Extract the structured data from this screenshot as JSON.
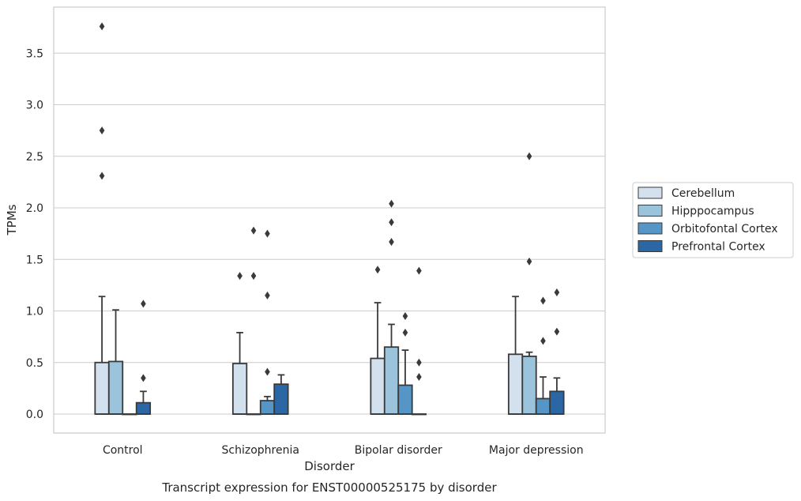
{
  "chart_data": {
    "type": "box",
    "xlabel": "Disorder",
    "ylabel": "TPMs",
    "caption": "Transcript expression for ENST00000525175 by disorder",
    "ylim": [
      -0.18,
      3.95
    ],
    "yticks": [
      "0.0",
      "0.5",
      "1.0",
      "1.5",
      "2.0",
      "2.5",
      "3.0",
      "3.5"
    ],
    "ytick_values": [
      0,
      0.5,
      1.0,
      1.5,
      2.0,
      2.5,
      3.0,
      3.5
    ],
    "grid": "horizontal",
    "legend_position": "right",
    "categories": [
      "Control",
      "Schizophrenia",
      "Bipolar disorder",
      "Major depression"
    ],
    "series": [
      {
        "name": "Cerebellum",
        "color": "#d3e1ef",
        "boxes": [
          {
            "q1": 0,
            "median": 0,
            "q3": 0.5,
            "whisker_low": 0,
            "whisker_high": 1.14,
            "outliers": [
              2.31,
              2.75,
              3.76
            ]
          },
          {
            "q1": 0,
            "median": 0,
            "q3": 0.49,
            "whisker_low": 0,
            "whisker_high": 0.79,
            "outliers": [
              1.34
            ]
          },
          {
            "q1": 0,
            "median": 0,
            "q3": 0.54,
            "whisker_low": 0,
            "whisker_high": 1.08,
            "outliers": [
              1.4
            ]
          },
          {
            "q1": 0,
            "median": 0,
            "q3": 0.58,
            "whisker_low": 0,
            "whisker_high": 1.14,
            "outliers": []
          }
        ]
      },
      {
        "name": "Hipppocampus",
        "color": "#9bc3db",
        "boxes": [
          {
            "q1": 0,
            "median": 0,
            "q3": 0.51,
            "whisker_low": 0,
            "whisker_high": 1.01,
            "outliers": []
          },
          {
            "q1": 0,
            "median": 0,
            "q3": 0,
            "whisker_low": 0,
            "whisker_high": 0,
            "outliers": [
              1.34,
              1.78
            ]
          },
          {
            "q1": 0,
            "median": 0,
            "q3": 0.65,
            "whisker_low": 0,
            "whisker_high": 0.87,
            "outliers": [
              1.67,
              1.86,
              2.04
            ]
          },
          {
            "q1": 0,
            "median": 0,
            "q3": 0.56,
            "whisker_low": 0,
            "whisker_high": 0.6,
            "outliers": [
              1.48,
              2.5
            ]
          }
        ]
      },
      {
        "name": "Orbitofontal Cortex",
        "color": "#5596c6",
        "boxes": [
          {
            "q1": 0,
            "median": 0,
            "q3": 0,
            "whisker_low": 0,
            "whisker_high": 0,
            "outliers": []
          },
          {
            "q1": 0,
            "median": 0,
            "q3": 0.13,
            "whisker_low": 0,
            "whisker_high": 0.17,
            "outliers": [
              0.41,
              1.15,
              1.75
            ]
          },
          {
            "q1": 0,
            "median": 0,
            "q3": 0.28,
            "whisker_low": 0,
            "whisker_high": 0.62,
            "outliers": [
              0.79,
              0.95
            ]
          },
          {
            "q1": 0,
            "median": 0,
            "q3": 0.15,
            "whisker_low": 0,
            "whisker_high": 0.36,
            "outliers": [
              0.71,
              1.1
            ]
          }
        ]
      },
      {
        "name": "Prefrontal Cortex",
        "color": "#2a67a4",
        "boxes": [
          {
            "q1": 0,
            "median": 0,
            "q3": 0.11,
            "whisker_low": 0,
            "whisker_high": 0.22,
            "outliers": [
              0.35,
              1.07
            ]
          },
          {
            "q1": 0,
            "median": 0,
            "q3": 0.29,
            "whisker_low": 0,
            "whisker_high": 0.38,
            "outliers": []
          },
          {
            "q1": 0,
            "median": 0,
            "q3": 0,
            "whisker_low": 0,
            "whisker_high": 0,
            "outliers": [
              0.36,
              0.5,
              1.39
            ]
          },
          {
            "q1": 0,
            "median": 0,
            "q3": 0.22,
            "whisker_low": 0,
            "whisker_high": 0.35,
            "outliers": [
              0.8,
              1.18
            ]
          }
        ]
      }
    ]
  }
}
